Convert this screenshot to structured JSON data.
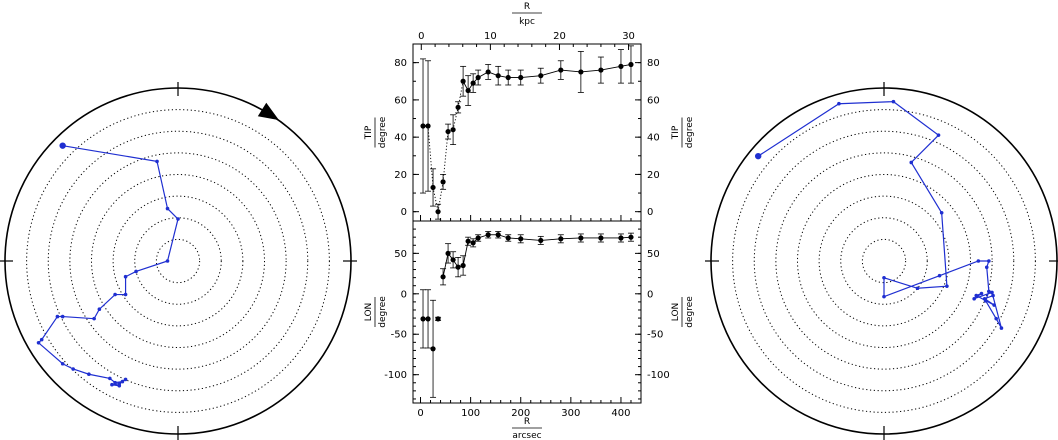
{
  "chart_data": [
    {
      "type": "polar",
      "rings": 7,
      "rotation_marker": "counter-clockwise arrow",
      "series": [
        {
          "color": "#1f2fd1",
          "points": [
            [
              -11,
              -11
            ],
            [
              -2,
              -9.5
            ],
            [
              -1,
              -5
            ],
            [
              0,
              -4
            ],
            [
              -1,
              0
            ],
            [
              -4,
              1
            ],
            [
              -5,
              1.5
            ],
            [
              -5,
              3.2
            ],
            [
              -6,
              3.2
            ],
            [
              -7.5,
              4.6
            ],
            [
              -8,
              5.5
            ],
            [
              -11,
              5.3
            ],
            [
              -11.5,
              5.3
            ],
            [
              -13,
              7.5
            ],
            [
              -13.3,
              7.8
            ],
            [
              -11,
              9.8
            ],
            [
              -10,
              10.3
            ],
            [
              -8.5,
              10.8
            ],
            [
              -6.5,
              11.2
            ],
            [
              -6,
              11.6
            ],
            [
              -5.3,
              11.5
            ],
            [
              -5,
              11.3
            ],
            [
              -5.6,
              11.7
            ],
            [
              -6.3,
              11.8
            ],
            [
              -5.6,
              11.9
            ]
          ]
        }
      ]
    },
    {
      "type": "scatter",
      "panel": "top",
      "ylabel_top": "TIP",
      "ylabel_bottom": "degree",
      "xlabel_top": "R",
      "xlabel_top_unit": "kpc",
      "x_top_ticks": [
        "0",
        "10",
        "20",
        "30"
      ],
      "x_top_range": [
        -1.2,
        31.8
      ],
      "y_ticks": [
        "0",
        "20",
        "40",
        "60",
        "80"
      ],
      "ylim": [
        -5,
        90
      ],
      "xlim": [
        -15,
        440
      ],
      "x": [
        5,
        15,
        25,
        35,
        45,
        55,
        65,
        75,
        85,
        95,
        105,
        115,
        135,
        155,
        175,
        200,
        240,
        280,
        320,
        360,
        400,
        420
      ],
      "y": [
        46,
        46,
        13,
        0,
        16,
        43,
        44,
        56,
        70,
        65,
        69,
        72,
        75,
        73,
        72,
        72,
        73,
        76,
        75,
        76,
        78,
        79
      ],
      "err": [
        36,
        35,
        10,
        4,
        4,
        4,
        8,
        3,
        8,
        8,
        5,
        4,
        4,
        5,
        4,
        4,
        4,
        5,
        11,
        7,
        9,
        10
      ],
      "dotted_until_index": 8
    },
    {
      "type": "scatter",
      "panel": "bottom",
      "ylabel_top": "LON",
      "ylabel_bottom": "degree",
      "xlabel": "R",
      "xlabel_unit": "arcsec",
      "x_ticks": [
        "0",
        "100",
        "200",
        "300",
        "400"
      ],
      "x_tick_values": [
        0,
        100,
        200,
        300,
        400
      ],
      "y_ticks": [
        "50",
        "0",
        "-50",
        "-100"
      ],
      "y_tick_values": [
        50,
        0,
        -50,
        -100
      ],
      "ylim": [
        -135,
        90
      ],
      "xlim": [
        -15,
        440
      ],
      "x": [
        5,
        15,
        25,
        35,
        45,
        55,
        65,
        75,
        85,
        95,
        105,
        115,
        135,
        155,
        175,
        200,
        240,
        280,
        320,
        360,
        400,
        420
      ],
      "y": [
        -31,
        -31,
        -68,
        -31,
        21,
        50,
        42,
        33,
        35,
        65,
        63,
        69,
        73,
        73,
        69,
        68,
        66,
        68,
        69,
        69,
        69,
        70
      ],
      "err": [
        36,
        36,
        60,
        2,
        10,
        12,
        10,
        12,
        12,
        5,
        5,
        4,
        4,
        4,
        4,
        5,
        5,
        5,
        5,
        5,
        5,
        5
      ],
      "disconnected_until_index": 4
    },
    {
      "type": "polar",
      "rings": 7,
      "series": [
        {
          "color": "#1f2fd1",
          "points": [
            [
              -12,
              -10
            ],
            [
              -4.3,
              -15
            ],
            [
              0.9,
              -15.2
            ],
            [
              5.2,
              -12
            ],
            [
              2.6,
              -9.4
            ],
            [
              5.5,
              -4.6
            ],
            [
              6,
              2.4
            ],
            [
              3.2,
              2.6
            ],
            [
              0,
              1.6
            ],
            [
              0,
              3.4
            ],
            [
              5.3,
              1.4
            ],
            [
              9,
              0
            ],
            [
              10,
              0
            ],
            [
              9.8,
              0.6
            ],
            [
              10,
              2.9
            ],
            [
              9.7,
              3.8
            ],
            [
              10.7,
              5.5
            ],
            [
              11.2,
              6.4
            ],
            [
              10.3,
              3
            ],
            [
              8.6,
              3.6
            ],
            [
              9.3,
              3.1
            ],
            [
              8.8,
              3.3
            ],
            [
              10.5,
              4.2
            ],
            [
              9.6,
              3.6
            ],
            [
              10.4,
              3.3
            ]
          ]
        }
      ]
    }
  ]
}
